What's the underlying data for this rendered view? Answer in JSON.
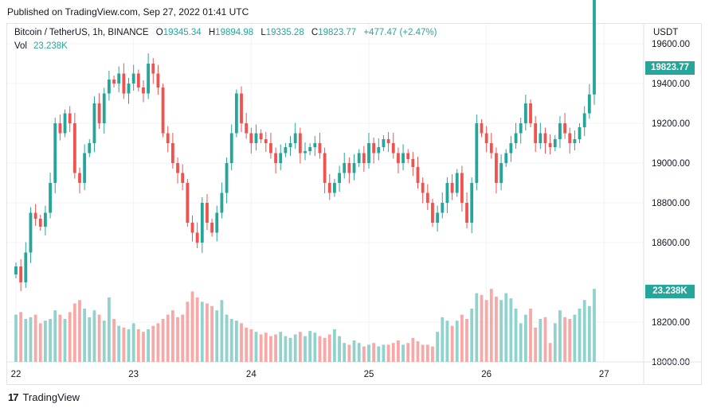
{
  "header": {
    "published": "Published on TradingView.com, Sep 27, 2022 01:41 UTC"
  },
  "legend": {
    "symbol": "Bitcoin / TetherUS, 1h, BINANCE",
    "open_label": "O",
    "open": "19345.34",
    "high_label": "H",
    "high": "19894.98",
    "low_label": "L",
    "low": "19335.28",
    "close_label": "C",
    "close": "19823.77",
    "change": "+477.47 (+2.47%)",
    "vol_label": "Vol",
    "vol_value": "23.238K"
  },
  "axis": {
    "currency": "USDT"
  },
  "tags": {
    "price": "19823.77",
    "volume": "23.238K"
  },
  "footer": {
    "brand": "TradingView"
  },
  "colors": {
    "up": "#26a69a",
    "down": "#ef5350",
    "up_vol": "#92d2cc",
    "down_vol": "#f7a9a7",
    "grid": "#f0f3fa"
  },
  "chart_data": {
    "type": "candlestick",
    "y_ticks": [
      18000,
      18200,
      18600,
      18800,
      19000,
      19200,
      19400,
      19600
    ],
    "y_tick_labels": [
      "18000.00",
      "18200.00",
      "18600.00",
      "18800.00",
      "19000.00",
      "19200.00",
      "19400.00",
      "19600.00"
    ],
    "x_tick_labels": [
      "22",
      "23",
      "24",
      "25",
      "26",
      "27"
    ],
    "x_tick_candle_index": [
      0,
      24,
      48,
      72,
      96,
      120
    ],
    "ylim": [
      17940,
      19960
    ],
    "candles_close": [
      18480,
      18400,
      18550,
      18750,
      18720,
      18680,
      18750,
      18900,
      19200,
      19150,
      19250,
      19200,
      18950,
      18900,
      19050,
      19100,
      19300,
      19200,
      19350,
      19420,
      19400,
      19450,
      19350,
      19400,
      19450,
      19380,
      19350,
      19500,
      19450,
      19380,
      19150,
      19100,
      19000,
      18950,
      18900,
      18700,
      18650,
      18600,
      18800,
      18700,
      18650,
      18750,
      18850,
      19000,
      19150,
      19350,
      19200,
      19150,
      19100,
      19150,
      19120,
      19100,
      19050,
      19000,
      19050,
      19080,
      19100,
      19150,
      19050,
      19060,
      19080,
      19100,
      19050,
      18900,
      18850,
      18900,
      18950,
      19000,
      18950,
      19000,
      19050,
      19000,
      19100,
      19050,
      19080,
      19120,
      19100,
      19050,
      19000,
      19050,
      19020,
      18980,
      18900,
      18850,
      18800,
      18700,
      18750,
      18800,
      18900,
      18850,
      18950,
      18800,
      18700,
      18900,
      19200,
      19150,
      19100,
      19050,
      18900,
      19000,
      19050,
      19100,
      19150,
      19200,
      19300,
      19200,
      19100,
      19150,
      19100,
      19080,
      19120,
      19200,
      19150,
      19100,
      19120,
      19180,
      19250,
      19345,
      19823
    ],
    "volume_relative": [
      0.55,
      0.58,
      0.5,
      0.52,
      0.55,
      0.45,
      0.48,
      0.5,
      0.6,
      0.55,
      0.5,
      0.58,
      0.68,
      0.72,
      0.62,
      0.52,
      0.6,
      0.55,
      0.48,
      0.75,
      0.5,
      0.42,
      0.4,
      0.38,
      0.45,
      0.38,
      0.35,
      0.38,
      0.42,
      0.45,
      0.5,
      0.55,
      0.6,
      0.52,
      0.55,
      0.7,
      0.82,
      0.75,
      0.7,
      0.68,
      0.65,
      0.6,
      0.72,
      0.55,
      0.5,
      0.48,
      0.45,
      0.4,
      0.38,
      0.35,
      0.32,
      0.34,
      0.3,
      0.32,
      0.35,
      0.3,
      0.28,
      0.32,
      0.35,
      0.3,
      0.36,
      0.34,
      0.3,
      0.28,
      0.32,
      0.38,
      0.3,
      0.22,
      0.2,
      0.25,
      0.22,
      0.18,
      0.2,
      0.22,
      0.18,
      0.2,
      0.2,
      0.22,
      0.25,
      0.2,
      0.22,
      0.28,
      0.24,
      0.2,
      0.2,
      0.18,
      0.35,
      0.52,
      0.48,
      0.42,
      0.48,
      0.55,
      0.5,
      0.62,
      0.8,
      0.78,
      0.72,
      0.85,
      0.76,
      0.72,
      0.8,
      0.74,
      0.62,
      0.45,
      0.55,
      0.62,
      0.4,
      0.5,
      0.52,
      0.22,
      0.45,
      0.6,
      0.52,
      0.5,
      0.55,
      0.62,
      0.72,
      0.65,
      0.85
    ]
  }
}
